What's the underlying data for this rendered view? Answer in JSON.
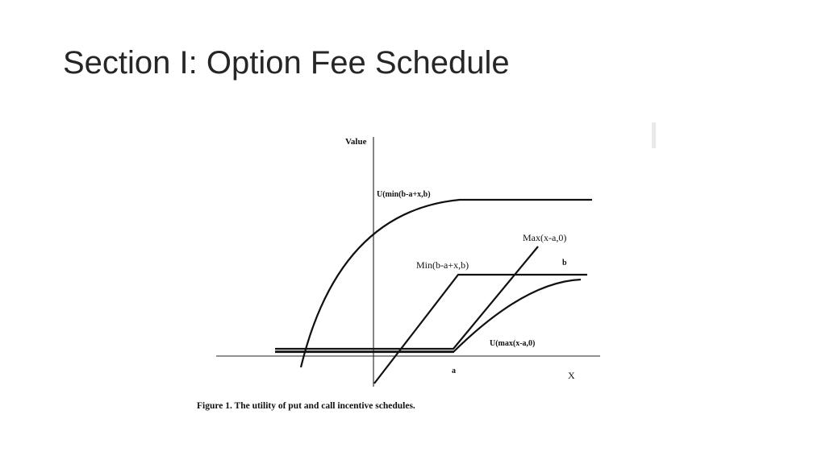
{
  "slide": {
    "title": "Section I: Option Fee Schedule"
  },
  "figure": {
    "y_axis_label": "Value",
    "x_axis_label": "X",
    "tick_a_label": "a",
    "label_b": "b",
    "curves": {
      "utility_min": "U(min(b-a+x,b)",
      "max_payoff": "Max(x-a,0)",
      "min_payoff": "Min(b-a+x,b)",
      "utility_max": "U(max(x-a,0)"
    },
    "caption": "Figure 1. The utility of put and call incentive schedules."
  }
}
